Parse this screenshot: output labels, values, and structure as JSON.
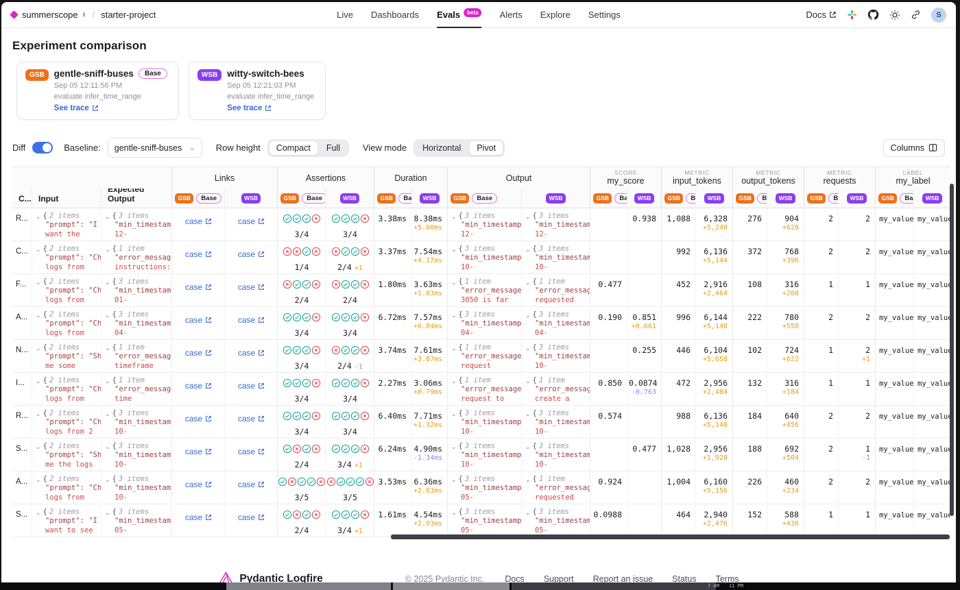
{
  "colors": {
    "accent": "#d928c5",
    "gsb": "#ee7118",
    "wsb": "#8a3df2",
    "base_border": "#e06ee0",
    "link_blue": "#3569d6",
    "pass": "#12a594",
    "fail": "#e5484d",
    "delta_pos": "#e79d13",
    "delta_neg": "#9b7bea",
    "toggle_on": "#3b72e8"
  },
  "nav": {
    "org": "summerscope",
    "project": "starter-project",
    "items": [
      {
        "label": "Live",
        "active": false
      },
      {
        "label": "Dashboards",
        "active": false
      },
      {
        "label": "Evals",
        "active": true,
        "badge": "beta"
      },
      {
        "label": "Alerts",
        "active": false
      },
      {
        "label": "Explore",
        "active": false
      },
      {
        "label": "Settings",
        "active": false
      }
    ],
    "docs": "Docs",
    "avatar": "S"
  },
  "page": {
    "title": "Experiment comparison"
  },
  "experiments": [
    {
      "chip": "GSB",
      "color": "#ee7118",
      "name": "gentle-sniff-buses",
      "base": "Base",
      "date": "Sep 05 12:11:56 PM",
      "task": "evaluate infer_time_range",
      "trace": "See trace"
    },
    {
      "chip": "WSB",
      "color": "#8a3df2",
      "name": "witty-switch-bees",
      "base": "",
      "date": "Sep 05 12:21:03 PM",
      "task": "evaluate infer_time_range",
      "trace": "See trace"
    }
  ],
  "controls": {
    "diff_label": "Diff",
    "diff_on": true,
    "baseline_label": "Baseline:",
    "baseline_value": "gentle-sniff-buses",
    "row_height_label": "Row height",
    "row_height_options": [
      "Compact",
      "Full"
    ],
    "row_height_active": "Compact",
    "view_mode_label": "View mode",
    "view_mode_options": [
      "Horizontal",
      "Pivot"
    ],
    "view_mode_active": "Pivot",
    "columns_label": "Columns"
  },
  "table": {
    "case_header": "C...",
    "input_header": "Input",
    "expected_header": "Expected Output",
    "chips": {
      "gsb": "GSB",
      "wsb": "WSB",
      "base": "Base",
      "base_trunc": "Ba"
    },
    "groups": [
      {
        "kicker": "",
        "label": "Links",
        "base": "Base"
      },
      {
        "kicker": "",
        "label": "Assertions",
        "base": "Base"
      },
      {
        "kicker": "",
        "label": "Duration",
        "base": "Ba"
      },
      {
        "kicker": "",
        "label": "Output",
        "base": "Base"
      },
      {
        "kicker": "SCORE",
        "label": "my_score",
        "base": "Ba"
      },
      {
        "kicker": "METRIC",
        "label": "input_tokens",
        "base": "Ba"
      },
      {
        "kicker": "METRIC",
        "label": "output_tokens",
        "base": "Ba"
      },
      {
        "kicker": "METRIC",
        "label": "requests",
        "base": "Ba"
      },
      {
        "kicker": "LABEL",
        "label": "my_label",
        "base": "Ba"
      }
    ],
    "link_label": "case",
    "rows": [
      {
        "case": "R...",
        "input": {
          "count": "2 items",
          "key": "\"prompt\": \"I",
          "val": "want the"
        },
        "expected": {
          "count": "3 items",
          "key": "\"min_timestamp",
          "val": "12-"
        },
        "assert_gsb": {
          "icons": [
            "p",
            "p",
            "p",
            "f"
          ],
          "score": "3/4",
          "delta": "",
          "dir": ""
        },
        "assert_wsb": {
          "icons": [
            "p",
            "p",
            "p",
            "f"
          ],
          "score": "3/4",
          "delta": "",
          "dir": ""
        },
        "dur": {
          "gsb": "3.38ms",
          "wsb": "8.38ms",
          "delta": "+5.00ms",
          "dir": "pos"
        },
        "out_gsb": {
          "count": "3 items",
          "key": "\"min_timestamp",
          "val": "12-"
        },
        "out_wsb": {
          "count": "3 items",
          "key": "\"min_timestamp",
          "val": "12-"
        },
        "score": {
          "gsb": "",
          "wsb": "0.938",
          "delta": "",
          "dir": ""
        },
        "in_tok": {
          "gsb": "1,088",
          "wsb": "6,328",
          "delta": "+5,240"
        },
        "out_tok": {
          "gsb": "276",
          "wsb": "904",
          "delta": "+628"
        },
        "req": {
          "gsb": "2",
          "wsb": "2",
          "delta": "",
          "dir": ""
        },
        "label": {
          "gsb": "my_value_",
          "wsb": "my_value_"
        }
      },
      {
        "case": "C...",
        "input": {
          "count": "2 items",
          "key": "\"prompt\": \"Ch",
          "val": "logs from"
        },
        "expected": {
          "count": "1 item",
          "key": "\"error_message",
          "val": "instructions:"
        },
        "assert_gsb": {
          "icons": [
            "f",
            "f",
            "p",
            "f"
          ],
          "score": "1/4",
          "delta": "",
          "dir": ""
        },
        "assert_wsb": {
          "icons": [
            "f",
            "p",
            "p",
            "f"
          ],
          "score": "2/4",
          "delta": "+1",
          "dir": "pos"
        },
        "dur": {
          "gsb": "3.37ms",
          "wsb": "7.54ms",
          "delta": "+4.17ms",
          "dir": "pos"
        },
        "out_gsb": {
          "count": "3 items",
          "key": "\"min_timestamp",
          "val": "10-"
        },
        "out_wsb": {
          "count": "3 items",
          "key": "\"min_timestamp",
          "val": "10-"
        },
        "score": {
          "gsb": "",
          "wsb": "",
          "delta": "",
          "dir": ""
        },
        "in_tok": {
          "gsb": "992",
          "wsb": "6,136",
          "delta": "+5,144"
        },
        "out_tok": {
          "gsb": "372",
          "wsb": "768",
          "delta": "+396"
        },
        "req": {
          "gsb": "2",
          "wsb": "2",
          "delta": "",
          "dir": ""
        },
        "label": {
          "gsb": "my_value_",
          "wsb": "my_value_"
        }
      },
      {
        "case": "F...",
        "input": {
          "count": "2 items",
          "key": "\"prompt\": \"Ch",
          "val": "logs from"
        },
        "expected": {
          "count": "3 items",
          "key": "\"min_timestamp",
          "val": "01-"
        },
        "assert_gsb": {
          "icons": [
            "f",
            "p",
            "p",
            "f"
          ],
          "score": "2/4",
          "delta": "",
          "dir": ""
        },
        "assert_wsb": {
          "icons": [
            "f",
            "p",
            "p",
            "f"
          ],
          "score": "2/4",
          "delta": "",
          "dir": ""
        },
        "dur": {
          "gsb": "1.80ms",
          "wsb": "3.63ms",
          "delta": "+1.83ms",
          "dir": "pos"
        },
        "out_gsb": {
          "count": "1 item",
          "key": "\"error_message",
          "val": "3050 is far"
        },
        "out_wsb": {
          "count": "1 item",
          "key": "\"error_message",
          "val": "requested"
        },
        "score": {
          "gsb": "0.477",
          "wsb": "",
          "delta": "",
          "dir": ""
        },
        "in_tok": {
          "gsb": "452",
          "wsb": "2,916",
          "delta": "+2,464"
        },
        "out_tok": {
          "gsb": "108",
          "wsb": "316",
          "delta": "+208"
        },
        "req": {
          "gsb": "1",
          "wsb": "1",
          "delta": "",
          "dir": ""
        },
        "label": {
          "gsb": "my_value_",
          "wsb": "my_value_"
        }
      },
      {
        "case": "A...",
        "input": {
          "count": "2 items",
          "key": "\"prompt\": \"Ch",
          "val": "logs from"
        },
        "expected": {
          "count": "3 items",
          "key": "\"min_timestamp",
          "val": "04-"
        },
        "assert_gsb": {
          "icons": [
            "p",
            "p",
            "p",
            "f"
          ],
          "score": "3/4",
          "delta": "",
          "dir": ""
        },
        "assert_wsb": {
          "icons": [
            "p",
            "p",
            "p",
            "f"
          ],
          "score": "3/4",
          "delta": "",
          "dir": ""
        },
        "dur": {
          "gsb": "6.72ms",
          "wsb": "7.57ms",
          "delta": "+0.84ms",
          "dir": "pos"
        },
        "out_gsb": {
          "count": "3 items",
          "key": "\"min_timestamp",
          "val": "04-"
        },
        "out_wsb": {
          "count": "3 items",
          "key": "\"min_timestamp",
          "val": "04-"
        },
        "score": {
          "gsb": "0.190",
          "wsb": "0.851",
          "delta": "+0.661",
          "dir": "pos"
        },
        "in_tok": {
          "gsb": "996",
          "wsb": "6,144",
          "delta": "+5,148"
        },
        "out_tok": {
          "gsb": "222",
          "wsb": "780",
          "delta": "+558"
        },
        "req": {
          "gsb": "2",
          "wsb": "2",
          "delta": "",
          "dir": ""
        },
        "label": {
          "gsb": "my_value_",
          "wsb": "my_value_"
        }
      },
      {
        "case": "N...",
        "input": {
          "count": "2 items",
          "key": "\"prompt\": \"Sh",
          "val": "me some"
        },
        "expected": {
          "count": "1 item",
          "key": "\"error_message",
          "val": "timeframe"
        },
        "assert_gsb": {
          "icons": [
            "p",
            "p",
            "p",
            "f"
          ],
          "score": "3/4",
          "delta": "",
          "dir": ""
        },
        "assert_wsb": {
          "icons": [
            "f",
            "p",
            "p",
            "f"
          ],
          "score": "2/4",
          "delta": "-1",
          "dir": "neg"
        },
        "dur": {
          "gsb": "3.74ms",
          "wsb": "7.61ms",
          "delta": "+3.87ms",
          "dir": "pos"
        },
        "out_gsb": {
          "count": "1 item",
          "key": "\"error_message",
          "val": "request"
        },
        "out_wsb": {
          "count": "3 items",
          "key": "\"min_timestamp",
          "val": "10-"
        },
        "score": {
          "gsb": "",
          "wsb": "0.255",
          "delta": "",
          "dir": ""
        },
        "in_tok": {
          "gsb": "446",
          "wsb": "6,104",
          "delta": "+5,658"
        },
        "out_tok": {
          "gsb": "102",
          "wsb": "724",
          "delta": "+622"
        },
        "req": {
          "gsb": "1",
          "wsb": "2",
          "delta": "+1",
          "dir": "pos"
        },
        "label": {
          "gsb": "my_value_",
          "wsb": "my_value_"
        }
      },
      {
        "case": "I...",
        "input": {
          "count": "2 items",
          "key": "\"prompt\": \"Ch",
          "val": "logs from"
        },
        "expected": {
          "count": "1 item",
          "key": "\"error_message",
          "val": "time"
        },
        "assert_gsb": {
          "icons": [
            "p",
            "p",
            "p",
            "f"
          ],
          "score": "3/4",
          "delta": "",
          "dir": ""
        },
        "assert_wsb": {
          "icons": [
            "p",
            "p",
            "p",
            "f"
          ],
          "score": "3/4",
          "delta": "",
          "dir": ""
        },
        "dur": {
          "gsb": "2.27ms",
          "wsb": "3.06ms",
          "delta": "+0.79ms",
          "dir": "pos"
        },
        "out_gsb": {
          "count": "1 item",
          "key": "\"error_message",
          "val": "request to"
        },
        "out_wsb": {
          "count": "1 item",
          "key": "\"error_message",
          "val": "create a"
        },
        "score": {
          "gsb": "0.850",
          "wsb": "0.0874",
          "delta": "-0.763",
          "dir": "neg"
        },
        "in_tok": {
          "gsb": "472",
          "wsb": "2,956",
          "delta": "+2,484"
        },
        "out_tok": {
          "gsb": "132",
          "wsb": "316",
          "delta": "+184"
        },
        "req": {
          "gsb": "1",
          "wsb": "1",
          "delta": "",
          "dir": ""
        },
        "label": {
          "gsb": "my_value_",
          "wsb": "my_value_"
        }
      },
      {
        "case": "R...",
        "input": {
          "count": "2 items",
          "key": "\"prompt\": \"Ch",
          "val": "logs from 2"
        },
        "expected": {
          "count": "3 items",
          "key": "\"min_timestamp",
          "val": "10-"
        },
        "assert_gsb": {
          "icons": [
            "p",
            "p",
            "p",
            "f"
          ],
          "score": "3/4",
          "delta": "",
          "dir": ""
        },
        "assert_wsb": {
          "icons": [
            "p",
            "p",
            "p",
            "f"
          ],
          "score": "3/4",
          "delta": "",
          "dir": ""
        },
        "dur": {
          "gsb": "6.40ms",
          "wsb": "7.71ms",
          "delta": "+1.32ms",
          "dir": "pos"
        },
        "out_gsb": {
          "count": "3 items",
          "key": "\"min_timestamp",
          "val": "10-"
        },
        "out_wsb": {
          "count": "3 items",
          "key": "\"min_timestamp",
          "val": "10-"
        },
        "score": {
          "gsb": "0.574",
          "wsb": "",
          "delta": "",
          "dir": ""
        },
        "in_tok": {
          "gsb": "988",
          "wsb": "6,136",
          "delta": "+5,148"
        },
        "out_tok": {
          "gsb": "184",
          "wsb": "640",
          "delta": "+456"
        },
        "req": {
          "gsb": "2",
          "wsb": "2",
          "delta": "",
          "dir": ""
        },
        "label": {
          "gsb": "my_value_",
          "wsb": "my_value_"
        }
      },
      {
        "case": "S...",
        "input": {
          "count": "2 items",
          "key": "\"prompt\": \"Sh",
          "val": "me the logs"
        },
        "expected": {
          "count": "3 items",
          "key": "\"min_timestamp",
          "val": "10-"
        },
        "assert_gsb": {
          "icons": [
            "p",
            "f",
            "p",
            "f"
          ],
          "score": "2/4",
          "delta": "",
          "dir": ""
        },
        "assert_wsb": {
          "icons": [
            "p",
            "p",
            "p",
            "f"
          ],
          "score": "3/4",
          "delta": "+1",
          "dir": "pos"
        },
        "dur": {
          "gsb": "6.24ms",
          "wsb": "4.90ms",
          "delta": "-1.34ms",
          "dir": "neg"
        },
        "out_gsb": {
          "count": "3 items",
          "key": "\"min_timestamp",
          "val": "10-"
        },
        "out_wsb": {
          "count": "3 items",
          "key": "\"min_timestamp",
          "val": "10-"
        },
        "score": {
          "gsb": "",
          "wsb": "0.477",
          "delta": "",
          "dir": ""
        },
        "in_tok": {
          "gsb": "1,028",
          "wsb": "2,956",
          "delta": "+1,928"
        },
        "out_tok": {
          "gsb": "188",
          "wsb": "692",
          "delta": "+504"
        },
        "req": {
          "gsb": "2",
          "wsb": "1",
          "delta": "-1",
          "dir": "neg"
        },
        "label": {
          "gsb": "my_value_",
          "wsb": "my_value_"
        }
      },
      {
        "case": "A...",
        "input": {
          "count": "2 items",
          "key": "\"prompt\": \"Ch",
          "val": "logs from"
        },
        "expected": {
          "count": "3 items",
          "key": "\"min_timestamp",
          "val": "10-"
        },
        "assert_gsb": {
          "icons": [
            "p",
            "f",
            "p",
            "p",
            "f"
          ],
          "score": "3/5",
          "delta": "",
          "dir": ""
        },
        "assert_wsb": {
          "icons": [
            "f",
            "p",
            "p",
            "p",
            "f"
          ],
          "score": "3/5",
          "delta": "",
          "dir": ""
        },
        "dur": {
          "gsb": "3.53ms",
          "wsb": "6.36ms",
          "delta": "+2.83ms",
          "dir": "pos"
        },
        "out_gsb": {
          "count": "3 items",
          "key": "\"min_timestamp",
          "val": "05-"
        },
        "out_wsb": {
          "count": "1 item",
          "key": "\"error_message",
          "val": "requested"
        },
        "score": {
          "gsb": "0.924",
          "wsb": "",
          "delta": "",
          "dir": ""
        },
        "in_tok": {
          "gsb": "1,004",
          "wsb": "6,160",
          "delta": "+5,156"
        },
        "out_tok": {
          "gsb": "226",
          "wsb": "460",
          "delta": "+234"
        },
        "req": {
          "gsb": "2",
          "wsb": "2",
          "delta": "",
          "dir": ""
        },
        "label": {
          "gsb": "my_value_",
          "wsb": "my_value_"
        }
      },
      {
        "case": "S...",
        "input": {
          "count": "2 items",
          "key": "\"prompt\": \"I",
          "val": "want to see"
        },
        "expected": {
          "count": "3 items",
          "key": "\"min_timestamp",
          "val": "05-"
        },
        "assert_gsb": {
          "icons": [
            "p",
            "f",
            "p",
            "f"
          ],
          "score": "2/4",
          "delta": "",
          "dir": ""
        },
        "assert_wsb": {
          "icons": [
            "p",
            "p",
            "p",
            "f"
          ],
          "score": "3/4",
          "delta": "+1",
          "dir": "pos"
        },
        "dur": {
          "gsb": "1.61ms",
          "wsb": "4.54ms",
          "delta": "+2.93ms",
          "dir": "pos"
        },
        "out_gsb": {
          "count": "3 items",
          "key": "\"min_timestamp",
          "val": "05-"
        },
        "out_wsb": {
          "count": "3 items",
          "key": "\"min_timestamp",
          "val": "05-"
        },
        "score": {
          "gsb": "0.0988",
          "wsb": "",
          "delta": "",
          "dir": ""
        },
        "in_tok": {
          "gsb": "464",
          "wsb": "2,940",
          "delta": "+2,476"
        },
        "out_tok": {
          "gsb": "152",
          "wsb": "588",
          "delta": "+436"
        },
        "req": {
          "gsb": "1",
          "wsb": "1",
          "delta": "",
          "dir": ""
        },
        "label": {
          "gsb": "my_value_",
          "wsb": "my_value_"
        }
      }
    ]
  },
  "footer": {
    "brand": "Pydantic Logfire",
    "copyright": "© 2025 Pydantic Inc.",
    "links": [
      "Docs",
      "Support",
      "Report an issue",
      "Status",
      "Terms"
    ]
  },
  "taskbar": {
    "time1": "7 AM",
    "time2": "11 PM"
  }
}
